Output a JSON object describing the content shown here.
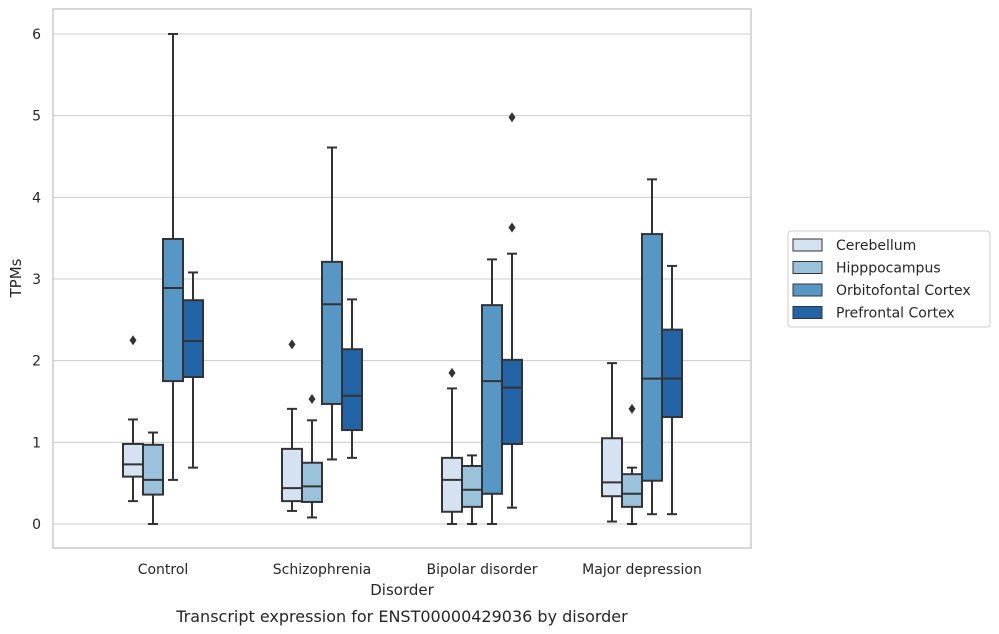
{
  "caption": "Transcript expression for ENST00000429036 by disorder",
  "colors": {
    "grid": "#cccccc",
    "axes_frame": "#cccccc",
    "box_line": "#333333",
    "text": "#262626"
  },
  "chart_data": {
    "type": "box",
    "xlabel": "Disorder",
    "ylabel": "TPMs",
    "ylim": [
      -0.3,
      6.3
    ],
    "yticks": [
      0,
      1,
      2,
      3,
      4,
      5,
      6
    ],
    "grid": true,
    "legend_position": "right",
    "categories": [
      "Control",
      "Schizophrenia",
      "Bipolar disorder",
      "Major depression"
    ],
    "series": [
      {
        "name": "Cerebellum",
        "color": "#d4e2f1",
        "boxes": [
          {
            "whislo": 0.28,
            "q1": 0.58,
            "med": 0.73,
            "q3": 0.98,
            "whishi": 1.28,
            "fliers": [
              2.25
            ]
          },
          {
            "whislo": 0.16,
            "q1": 0.28,
            "med": 0.44,
            "q3": 0.92,
            "whishi": 1.41,
            "fliers": [
              2.2
            ]
          },
          {
            "whislo": 0.0,
            "q1": 0.15,
            "med": 0.54,
            "q3": 0.81,
            "whishi": 1.66,
            "fliers": [
              1.85
            ]
          },
          {
            "whislo": 0.03,
            "q1": 0.34,
            "med": 0.51,
            "q3": 1.05,
            "whishi": 1.97,
            "fliers": []
          }
        ]
      },
      {
        "name": "Hipppocampus",
        "color": "#9ac2dc",
        "boxes": [
          {
            "whislo": 0.0,
            "q1": 0.36,
            "med": 0.54,
            "q3": 0.97,
            "whishi": 1.12,
            "fliers": []
          },
          {
            "whislo": 0.08,
            "q1": 0.27,
            "med": 0.46,
            "q3": 0.75,
            "whishi": 1.27,
            "fliers": [
              1.53
            ]
          },
          {
            "whislo": 0.0,
            "q1": 0.21,
            "med": 0.42,
            "q3": 0.71,
            "whishi": 0.84,
            "fliers": []
          },
          {
            "whislo": 0.0,
            "q1": 0.21,
            "med": 0.37,
            "q3": 0.61,
            "whishi": 0.69,
            "fliers": [
              1.41
            ]
          }
        ]
      },
      {
        "name": "Orbitofontal Cortex",
        "color": "#5697c6",
        "boxes": [
          {
            "whislo": 0.54,
            "q1": 1.75,
            "med": 2.89,
            "q3": 3.49,
            "whishi": 6.0,
            "fliers": []
          },
          {
            "whislo": 0.79,
            "q1": 1.47,
            "med": 2.69,
            "q3": 3.21,
            "whishi": 4.61,
            "fliers": []
          },
          {
            "whislo": 0.0,
            "q1": 0.37,
            "med": 1.75,
            "q3": 2.68,
            "whishi": 3.24,
            "fliers": []
          },
          {
            "whislo": 0.12,
            "q1": 0.53,
            "med": 1.78,
            "q3": 3.55,
            "whishi": 4.22,
            "fliers": []
          }
        ]
      },
      {
        "name": "Prefrontal Cortex",
        "color": "#2264a6",
        "boxes": [
          {
            "whislo": 0.69,
            "q1": 1.8,
            "med": 2.24,
            "q3": 2.74,
            "whishi": 3.08,
            "fliers": []
          },
          {
            "whislo": 0.81,
            "q1": 1.15,
            "med": 1.57,
            "q3": 2.14,
            "whishi": 2.75,
            "fliers": []
          },
          {
            "whislo": 0.2,
            "q1": 0.98,
            "med": 1.67,
            "q3": 2.01,
            "whishi": 3.31,
            "fliers": [
              3.63,
              4.98
            ]
          },
          {
            "whislo": 0.12,
            "q1": 1.31,
            "med": 1.78,
            "q3": 2.38,
            "whishi": 3.16,
            "fliers": []
          }
        ]
      }
    ]
  }
}
